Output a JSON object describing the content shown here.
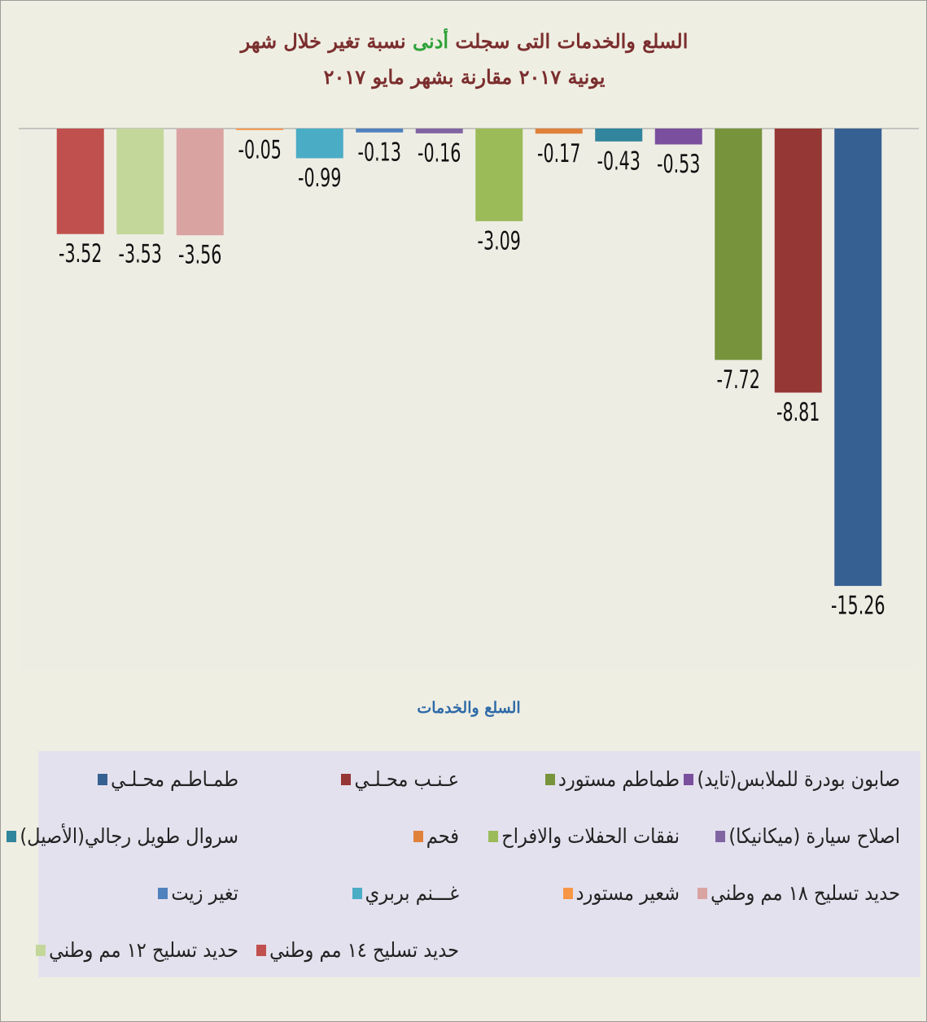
{
  "chart_data": {
    "type": "bar",
    "title": [
      "السلع والخدمات التى سجلت",
      "أدنى",
      "نسبة تغير خلال شهر"
    ],
    "subtitle": "يونية ٢٠١٧ مقارنة بشهر مايو ٢٠١٧",
    "x_label": "السلع والخدمات",
    "categories": [
      "حديد تسليح ١٤ مم وطني",
      "حديد تسليح ١٢ مم وطني",
      "حديد تسليح ١٨ مم وطني",
      "شعير مستورد",
      "غـــنم بربري",
      "تغير زيت",
      "اصلاح سيارة (ميكانيكا)",
      "نفقات الحفلات والافراح",
      "فحم",
      "سروال طويل رجالي(الأصيل)",
      "صابون بودرة للملابس(تايد)",
      "طماطم مستورد",
      "عـنـب محـلـي",
      "طمـاطـم محـلـي"
    ],
    "values": [
      -3.52,
      -3.53,
      -3.56,
      -0.05,
      -0.99,
      -0.13,
      -0.16,
      -3.09,
      -0.17,
      -0.43,
      -0.53,
      -7.72,
      -8.81,
      -15.26
    ],
    "colors": [
      "#c0504d",
      "#c4d79b",
      "#d9a3a2",
      "#f79646",
      "#4bacc6",
      "#4f81bd",
      "#8064a2",
      "#9bbb59",
      "#e0813a",
      "#31859c",
      "#7a4f9e",
      "#77933c",
      "#953735",
      "#376092"
    ],
    "ylim": [
      -18,
      0
    ]
  }
}
